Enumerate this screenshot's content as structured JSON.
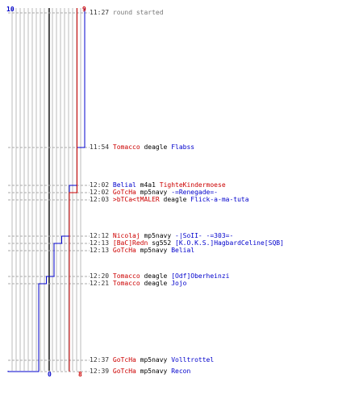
{
  "colors": {
    "blue": "#0000cc",
    "red": "#cc0000",
    "grid": "#bbbbbb",
    "center": "#555555",
    "dash": "#aaaaaa",
    "text": "#333333"
  },
  "scores": {
    "blue_start": "10",
    "red_start": "9",
    "blue_end": "0",
    "red_end": "8"
  },
  "chart_data": {
    "type": "line",
    "max_score": 10,
    "series": [
      {
        "team": "blue",
        "values": [
          10,
          9,
          8,
          8,
          8,
          7,
          6,
          6,
          5,
          4,
          4,
          3,
          2,
          1,
          0
        ]
      },
      {
        "team": "red",
        "values": [
          9,
          9,
          9,
          8,
          8,
          8,
          8,
          8,
          8,
          8,
          8,
          8,
          8,
          8,
          8
        ]
      }
    ]
  },
  "events": [
    {
      "time": "11:27",
      "note": "round started"
    },
    {
      "time": "11:54",
      "attacker": "Tomacco",
      "attacker_team": "red",
      "weapon": "deagle",
      "victim": "Flabss",
      "victim_team": "blue"
    },
    {
      "time": "12:02",
      "attacker": "Belial",
      "attacker_team": "blue",
      "weapon": "m4a1",
      "victim": "TighteKindermoese",
      "victim_team": "red"
    },
    {
      "time": "12:02",
      "attacker": "GoTcHa",
      "attacker_team": "red",
      "weapon": "mp5navy",
      "victim": "-=Renegade=-",
      "victim_team": "blue"
    },
    {
      "time": "12:03",
      "attacker": ">bTCa<tMALER",
      "attacker_team": "red",
      "weapon": "deagle",
      "victim": "Flick-a-ma-tuta",
      "victim_team": "blue"
    },
    {
      "time": "12:12",
      "attacker": "Nicolaj",
      "attacker_team": "red",
      "weapon": "mp5navy",
      "victim": "-|SoII- -=303=-",
      "victim_team": "blue"
    },
    {
      "time": "12:13",
      "attacker": "[BaC]Redn",
      "attacker_team": "red",
      "weapon": "sg552",
      "victim": "[K.O.K.S.]HagbardCeline[SQB]",
      "victim_team": "blue"
    },
    {
      "time": "12:13",
      "attacker": "GoTcHa",
      "attacker_team": "red",
      "weapon": "mp5navy",
      "victim": "Belial",
      "victim_team": "blue"
    },
    {
      "time": "12:20",
      "attacker": "Tomacco",
      "attacker_team": "red",
      "weapon": "deagle",
      "victim": "[Odf]Oberheinzi",
      "victim_team": "blue"
    },
    {
      "time": "12:21",
      "attacker": "Tomacco",
      "attacker_team": "red",
      "weapon": "deagle",
      "victim": "Jojo",
      "victim_team": "blue"
    },
    {
      "time": "12:37",
      "attacker": "GoTcHa",
      "attacker_team": "red",
      "weapon": "mp5navy",
      "victim": "Volltrottel",
      "victim_team": "blue"
    },
    {
      "time": "12:39",
      "attacker": "GoTcHa",
      "attacker_team": "red",
      "weapon": "mp5navy",
      "victim": "Recon",
      "victim_team": "blue"
    }
  ]
}
